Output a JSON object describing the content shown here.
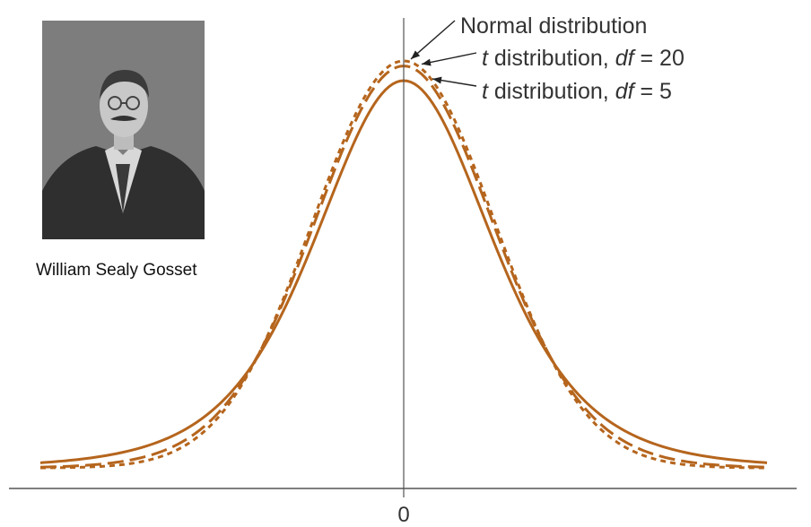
{
  "photo": {
    "caption": "William Sealy Gosset"
  },
  "colors": {
    "curve": "#b5651d",
    "axis": "#555555"
  },
  "chart_data": {
    "type": "line",
    "x_range": [
      -4,
      4
    ],
    "xticks": [
      "0"
    ],
    "grid": false,
    "series": [
      {
        "name": "Normal distribution",
        "dist": "normal",
        "style": "dotted",
        "label_parts": [
          {
            "text": "Normal distribution",
            "italic": false
          }
        ]
      },
      {
        "name": "t distribution, df = 20",
        "dist": "t",
        "df": 20,
        "style": "dashed",
        "label_parts": [
          {
            "text": "t",
            "italic": true
          },
          {
            "text": " distribution, ",
            "italic": false
          },
          {
            "text": "df",
            "italic": true
          },
          {
            "text": " = 20",
            "italic": false
          }
        ]
      },
      {
        "name": "t distribution, df = 5",
        "dist": "t",
        "df": 5,
        "style": "solid",
        "label_parts": [
          {
            "text": "t",
            "italic": true
          },
          {
            "text": " distribution, ",
            "italic": false
          },
          {
            "text": "df",
            "italic": true
          },
          {
            "text": " = 5",
            "italic": false
          }
        ]
      }
    ]
  }
}
